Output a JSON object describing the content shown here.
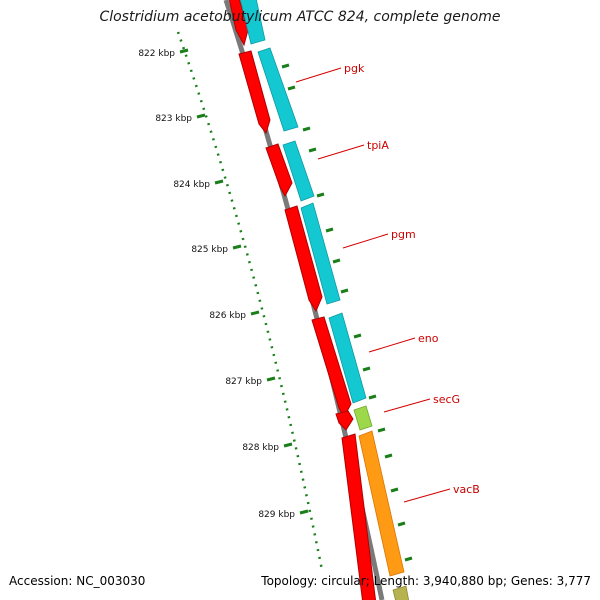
{
  "title": "Clostridium acetobutylicum ATCC 824, complete genome",
  "footer": {
    "accession_label": "Accession:",
    "accession": "NC_003030",
    "topology_label": "Topology:",
    "topology": "circular",
    "length_label": "Length:",
    "length": "3,940,880 bp",
    "genes_label": "Genes:",
    "genes": "3,777"
  },
  "scale": {
    "ticks": [
      "822 kbp",
      "823 kbp",
      "824 kbp",
      "825 kbp",
      "826 kbp",
      "827 kbp",
      "828 kbp",
      "829 kbp"
    ]
  },
  "colors": {
    "backbone": "#7a7a7a",
    "cds": "#ff0000",
    "cds_border": "#b00000",
    "blast_a": "#14c8d2",
    "blast_a_alt": "#9dd84b",
    "blast_b": "#ff9a14",
    "blast_c": "#b7b250",
    "tick": "#1a7f1a",
    "label_text": "#cc0000",
    "label_line": "#d40000"
  },
  "genes": [
    {
      "name": "pgk"
    },
    {
      "name": "tpiA"
    },
    {
      "name": "pgm"
    },
    {
      "name": "eno"
    },
    {
      "name": "secG"
    },
    {
      "name": "vacB"
    }
  ]
}
